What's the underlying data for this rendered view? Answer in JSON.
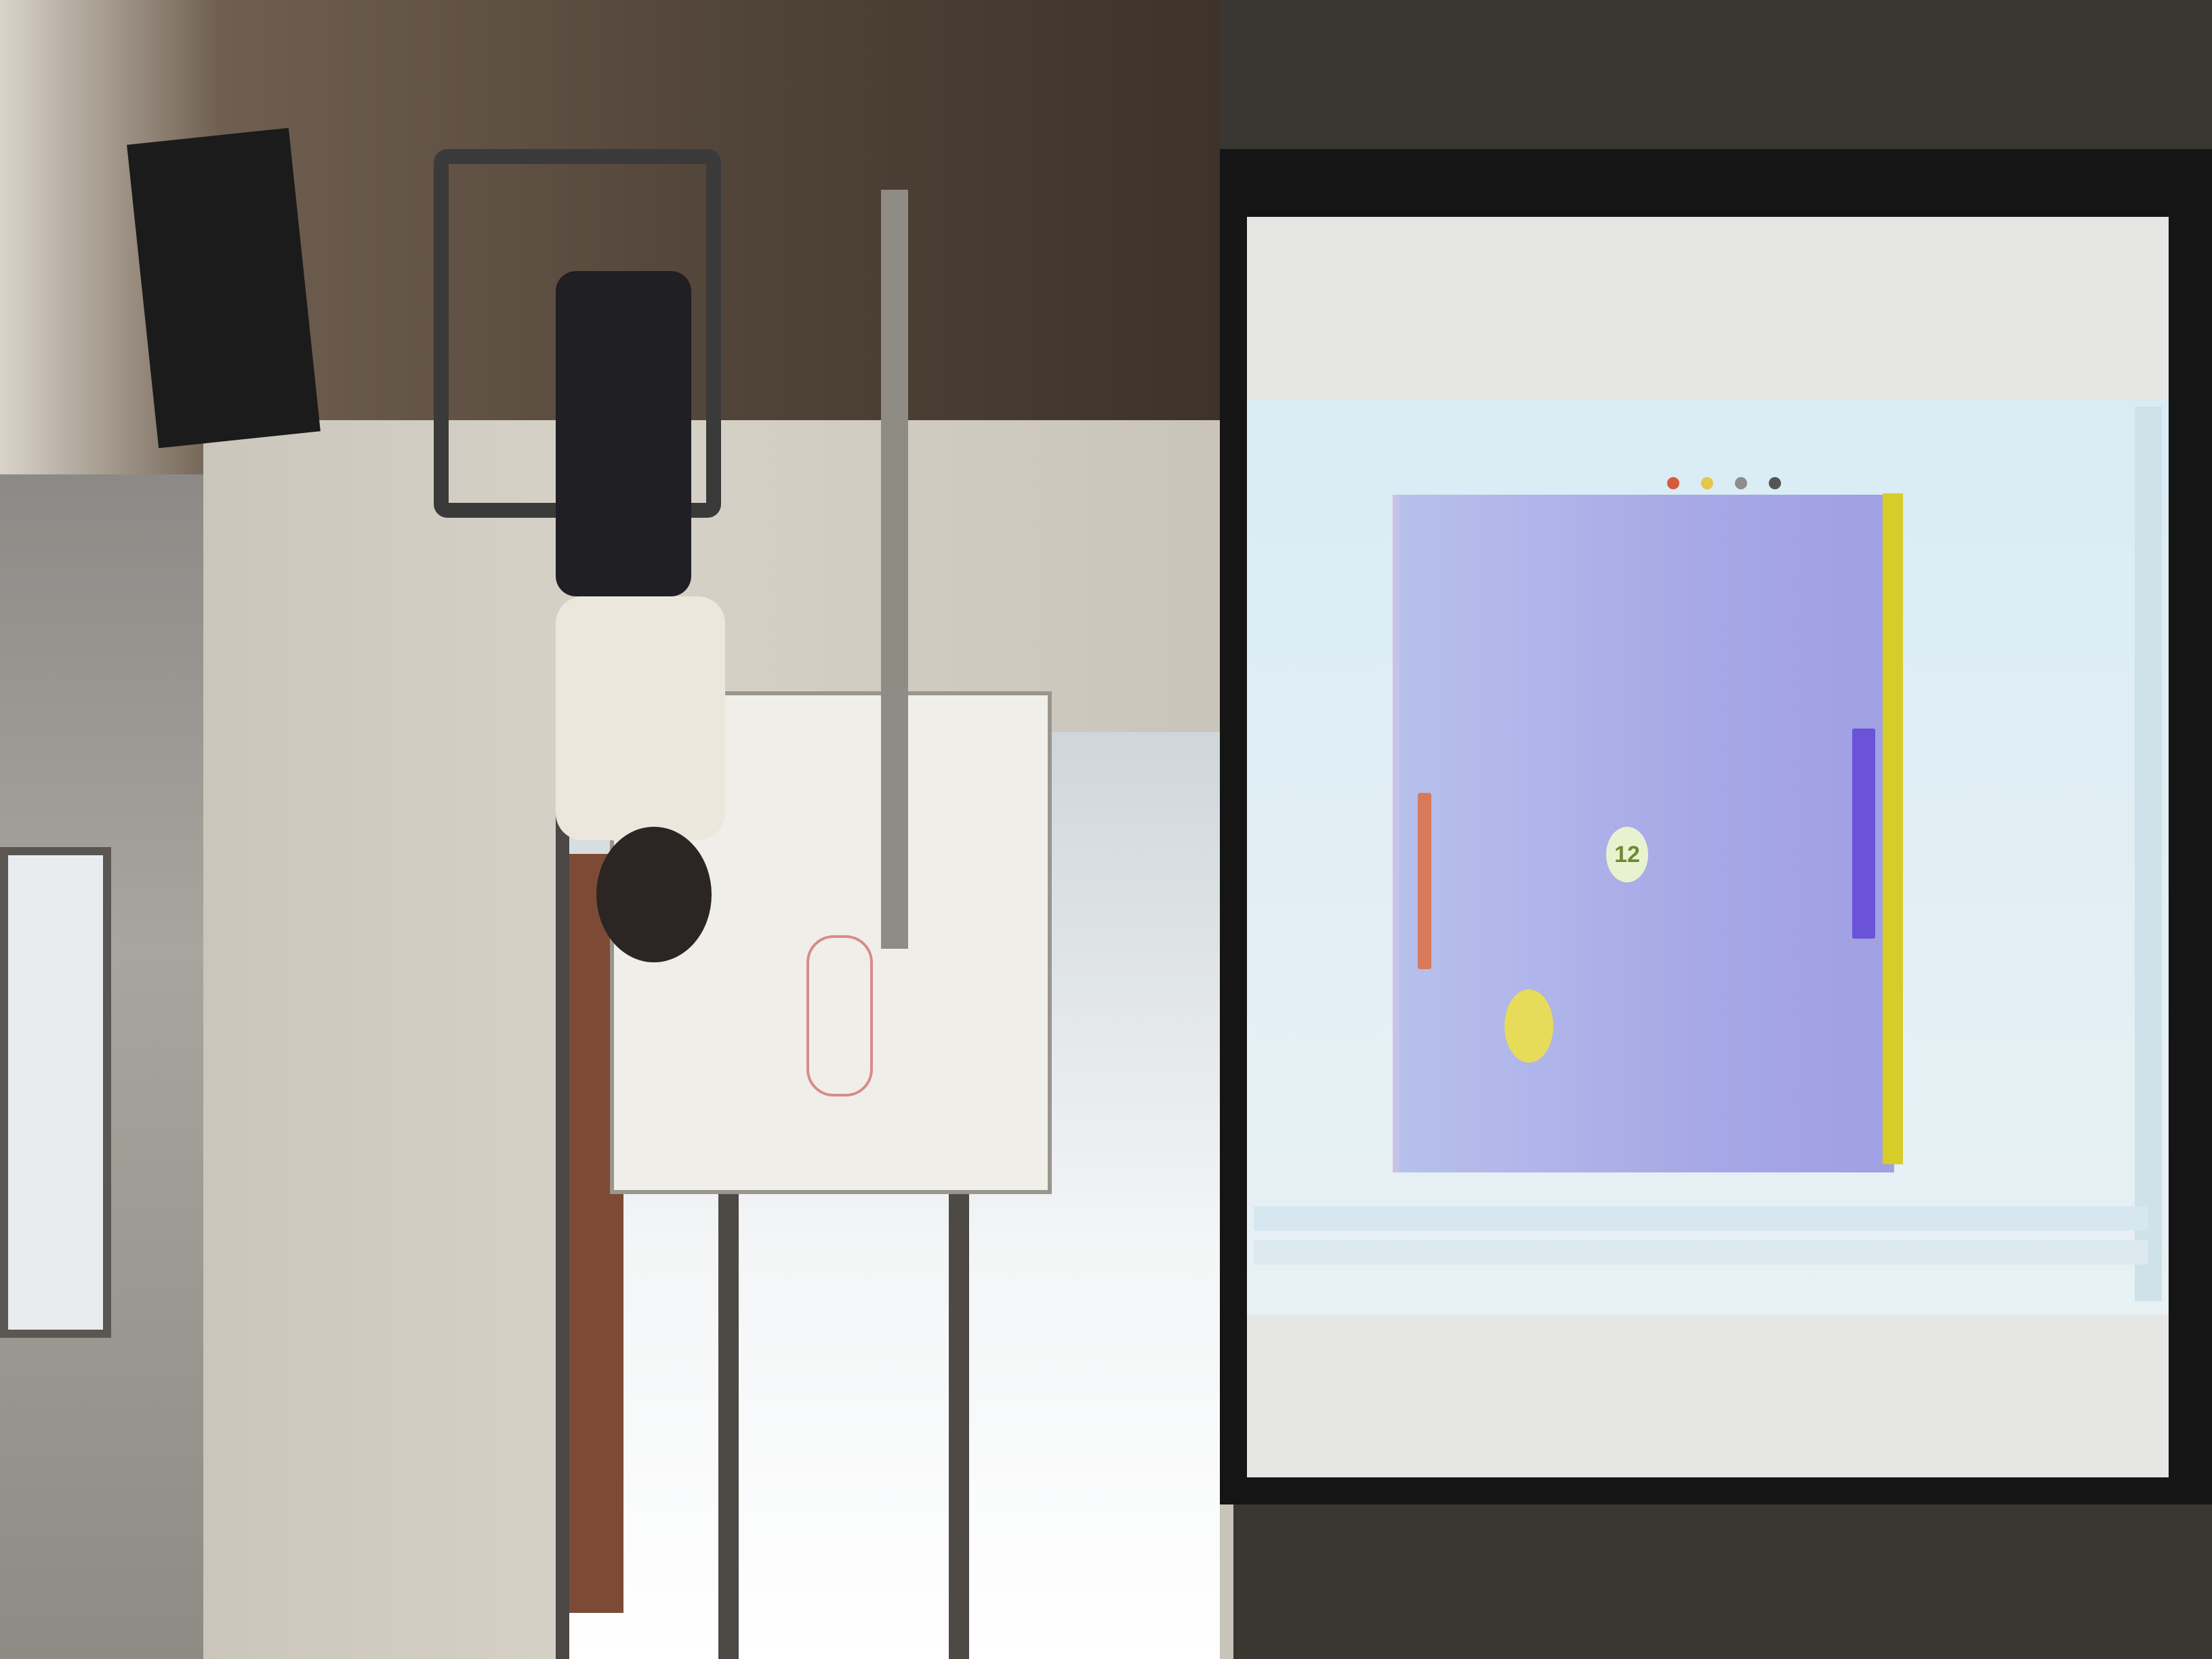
{
  "photo": {
    "subject": "",
    "projected_game": {
      "score_text": "12",
      "colors": {
        "background": "#a7a8e6",
        "left_paddle": "#d8795a",
        "right_paddle": "#6a53d8",
        "rail": "#d6cc2a",
        "ball": "#e7db5a"
      },
      "toolbar_icons": [
        "dot-icon",
        "dot-icon",
        "dot-icon",
        "dot-icon"
      ]
    }
  }
}
